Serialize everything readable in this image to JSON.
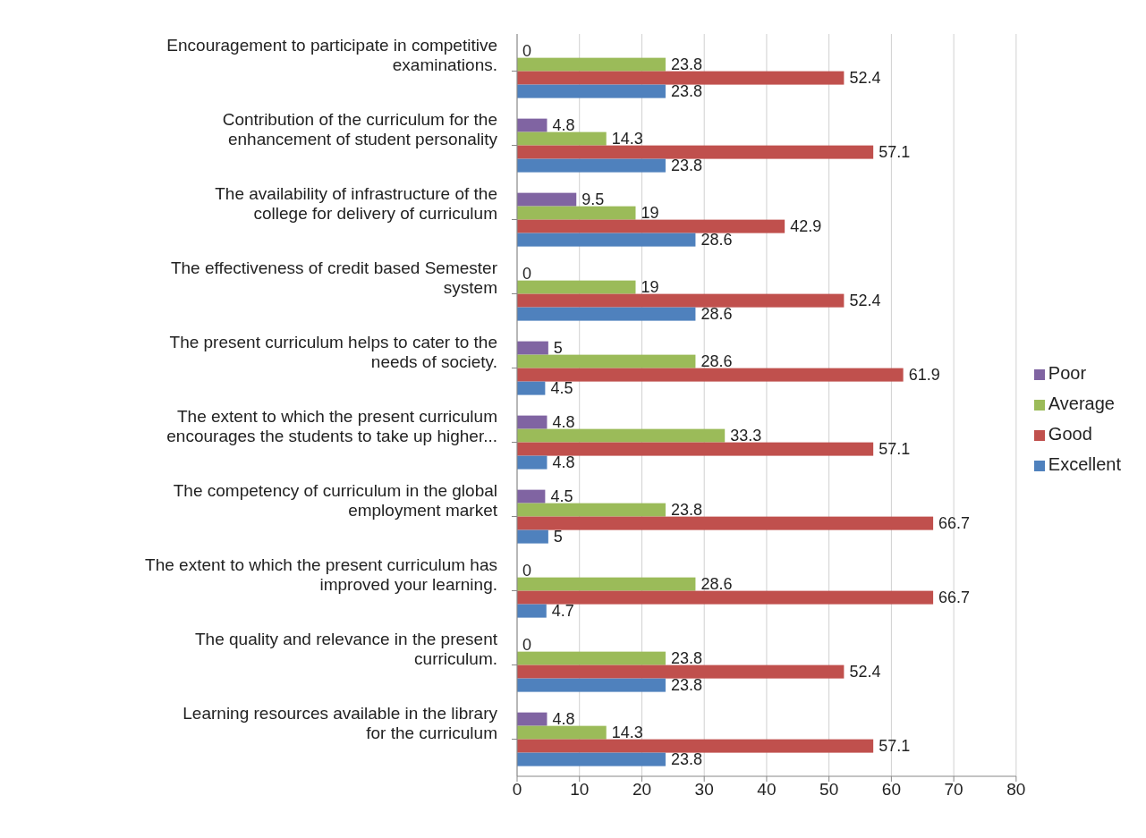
{
  "chart_data": {
    "type": "bar",
    "orientation": "horizontal",
    "categories": [
      "Encouragement to participate in competitive examinations.",
      "Contribution of the curriculum for the enhancement of student personality",
      "The availability of infrastructure of the college for delivery of curriculum",
      "The effectiveness of credit based Semester system",
      "The present curriculum helps to cater to the needs of society.",
      "The extent to which the present curriculum encourages the students to take up higher...",
      "The competency of curriculum in the global employment market",
      "The extent to which the present curriculum has improved your learning.",
      "The quality and relevance in the present curriculum.",
      "Learning resources available in the library for the curriculum"
    ],
    "series": [
      {
        "name": "Poor",
        "color": "#8064a2",
        "values": [
          0,
          4.8,
          9.5,
          0,
          5,
          4.8,
          4.5,
          0,
          0,
          4.8
        ]
      },
      {
        "name": "Average",
        "color": "#9bbb59",
        "values": [
          23.8,
          14.3,
          19,
          19,
          28.6,
          33.3,
          23.8,
          28.6,
          23.8,
          14.3
        ]
      },
      {
        "name": "Good",
        "color": "#c0504d",
        "values": [
          52.4,
          57.1,
          42.9,
          52.4,
          61.9,
          57.1,
          66.7,
          66.7,
          52.4,
          57.1
        ]
      },
      {
        "name": "Excellent",
        "color": "#4f81bd",
        "values": [
          23.8,
          23.8,
          28.6,
          28.6,
          4.5,
          4.8,
          5,
          4.7,
          23.8,
          23.8
        ]
      }
    ],
    "xlim": [
      0,
      80
    ],
    "xticks": [
      0,
      10,
      20,
      30,
      40,
      50,
      60,
      70,
      80
    ],
    "grid": "x",
    "legend": "right",
    "data_labels": true
  }
}
